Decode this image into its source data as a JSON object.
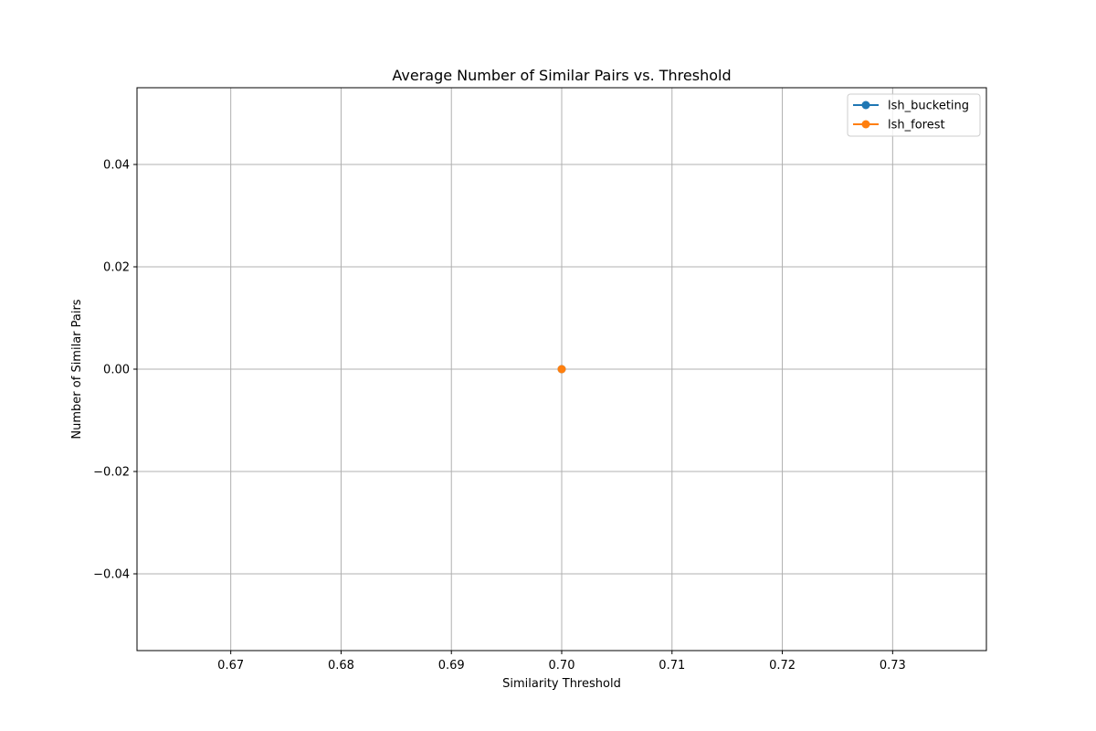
{
  "chart_data": {
    "type": "line",
    "title": "Average Number of Similar Pairs vs. Threshold",
    "xlabel": "Similarity Threshold",
    "ylabel": "Number of Similar Pairs",
    "xlim": [
      0.6615,
      0.7385
    ],
    "ylim": [
      -0.055,
      0.055
    ],
    "xticks": [
      0.67,
      0.68,
      0.69,
      0.7,
      0.71,
      0.72,
      0.73
    ],
    "xtick_labels": [
      "0.67",
      "0.68",
      "0.69",
      "0.70",
      "0.71",
      "0.72",
      "0.73"
    ],
    "yticks": [
      -0.04,
      -0.02,
      0.0,
      0.02,
      0.04
    ],
    "ytick_labels": [
      "−0.04",
      "−0.02",
      "0.00",
      "0.02",
      "0.04"
    ],
    "grid": true,
    "legend_position": "top-right",
    "series": [
      {
        "name": "lsh_bucketing",
        "color": "#1f77b4",
        "x": [
          0.7
        ],
        "y": [
          0
        ]
      },
      {
        "name": "lsh_forest",
        "color": "#ff7f0e",
        "x": [
          0.7
        ],
        "y": [
          0
        ]
      }
    ]
  }
}
